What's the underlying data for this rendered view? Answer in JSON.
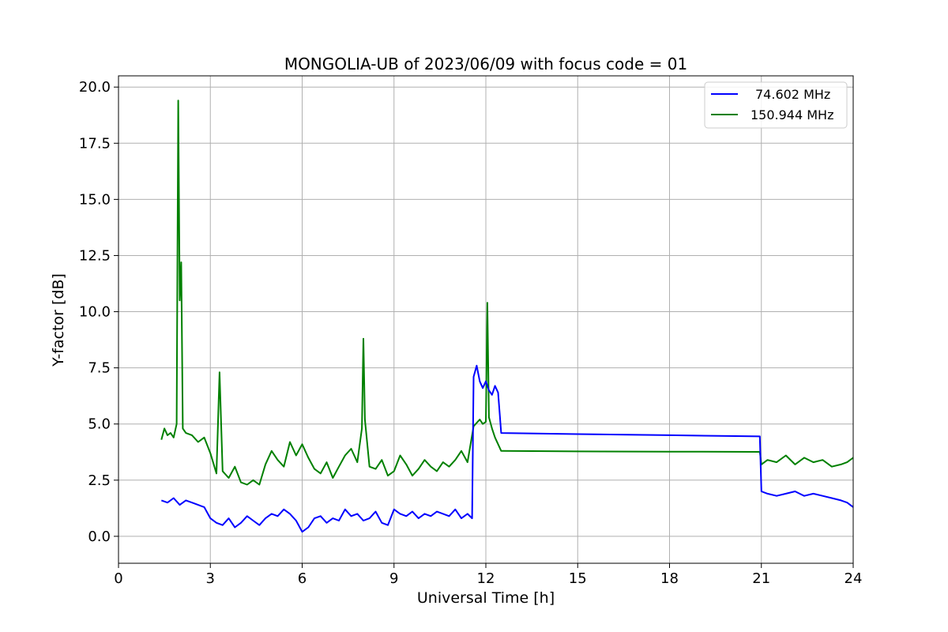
{
  "chart_data": {
    "type": "line",
    "title": "MONGOLIA-UB of 2023/06/09 with focus code = 01",
    "xlabel": "Universal Time [h]",
    "ylabel": "Y-factor [dB]",
    "xlim": [
      0,
      24
    ],
    "ylim": [
      -1.2,
      20.5
    ],
    "xticks": [
      0,
      3,
      6,
      9,
      12,
      15,
      18,
      21,
      24
    ],
    "xtick_labels": [
      "0",
      "3",
      "6",
      "9",
      "12",
      "15",
      "18",
      "21",
      "24"
    ],
    "yticks": [
      0,
      2.5,
      5,
      7.5,
      10,
      12.5,
      15,
      17.5,
      20
    ],
    "ytick_labels": [
      "0.0",
      "2.5",
      "5.0",
      "7.5",
      "10.0",
      "12.5",
      "15.0",
      "17.5",
      "20.0"
    ],
    "grid": true,
    "legend_position": "top-right",
    "series": [
      {
        "name": "74.602 MHz",
        "color": "#0000ff",
        "x": [
          1.4,
          1.6,
          1.8,
          2.0,
          2.2,
          2.4,
          2.6,
          2.8,
          3.0,
          3.2,
          3.4,
          3.6,
          3.8,
          4.0,
          4.2,
          4.4,
          4.6,
          4.8,
          5.0,
          5.2,
          5.4,
          5.6,
          5.8,
          6.0,
          6.2,
          6.4,
          6.6,
          6.8,
          7.0,
          7.2,
          7.4,
          7.6,
          7.8,
          8.0,
          8.2,
          8.4,
          8.6,
          8.8,
          9.0,
          9.2,
          9.4,
          9.6,
          9.8,
          10.0,
          10.2,
          10.4,
          10.6,
          10.8,
          11.0,
          11.2,
          11.4,
          11.55,
          11.6,
          11.7,
          11.8,
          11.9,
          12.0,
          12.1,
          12.2,
          12.3,
          12.4,
          12.5,
          15.0,
          18.0,
          20.95,
          21.0,
          21.2,
          21.5,
          21.8,
          22.1,
          22.4,
          22.7,
          23.0,
          23.3,
          23.6,
          23.8,
          24.0
        ],
        "y": [
          1.6,
          1.5,
          1.7,
          1.4,
          1.6,
          1.5,
          1.4,
          1.3,
          0.8,
          0.6,
          0.5,
          0.8,
          0.4,
          0.6,
          0.9,
          0.7,
          0.5,
          0.8,
          1.0,
          0.9,
          1.2,
          1.0,
          0.7,
          0.2,
          0.4,
          0.8,
          0.9,
          0.6,
          0.8,
          0.7,
          1.2,
          0.9,
          1.0,
          0.7,
          0.8,
          1.1,
          0.6,
          0.5,
          1.2,
          1.0,
          0.9,
          1.1,
          0.8,
          1.0,
          0.9,
          1.1,
          1.0,
          0.9,
          1.2,
          0.8,
          1.0,
          0.8,
          7.1,
          7.6,
          6.9,
          6.6,
          6.9,
          6.5,
          6.3,
          6.7,
          6.4,
          4.6,
          4.55,
          4.5,
          4.45,
          2.0,
          1.9,
          1.8,
          1.9,
          2.0,
          1.8,
          1.9,
          1.8,
          1.7,
          1.6,
          1.5,
          1.3
        ]
      },
      {
        "name": "150.944 MHz",
        "color": "#008000",
        "x": [
          1.4,
          1.5,
          1.6,
          1.7,
          1.8,
          1.9,
          1.95,
          2.0,
          2.05,
          2.1,
          2.2,
          2.4,
          2.6,
          2.8,
          3.0,
          3.2,
          3.3,
          3.4,
          3.6,
          3.8,
          4.0,
          4.2,
          4.4,
          4.6,
          4.8,
          5.0,
          5.2,
          5.4,
          5.6,
          5.8,
          6.0,
          6.2,
          6.4,
          6.6,
          6.8,
          7.0,
          7.2,
          7.4,
          7.6,
          7.8,
          7.95,
          8.0,
          8.05,
          8.2,
          8.4,
          8.6,
          8.8,
          9.0,
          9.2,
          9.4,
          9.6,
          9.8,
          10.0,
          10.2,
          10.4,
          10.6,
          10.8,
          11.0,
          11.2,
          11.4,
          11.6,
          11.8,
          11.9,
          12.0,
          12.05,
          12.1,
          12.2,
          12.3,
          12.4,
          12.5,
          15.0,
          18.0,
          20.95,
          21.0,
          21.2,
          21.5,
          21.8,
          22.1,
          22.4,
          22.7,
          23.0,
          23.3,
          23.6,
          23.8,
          24.0
        ],
        "y": [
          4.3,
          4.8,
          4.5,
          4.6,
          4.4,
          5.0,
          19.4,
          10.5,
          12.2,
          4.8,
          4.6,
          4.5,
          4.2,
          4.4,
          3.7,
          2.8,
          7.3,
          2.9,
          2.6,
          3.1,
          2.4,
          2.3,
          2.5,
          2.3,
          3.2,
          3.8,
          3.4,
          3.1,
          4.2,
          3.6,
          4.1,
          3.5,
          3.0,
          2.8,
          3.3,
          2.6,
          3.1,
          3.6,
          3.9,
          3.3,
          4.8,
          8.8,
          5.2,
          3.1,
          3.0,
          3.4,
          2.7,
          2.9,
          3.6,
          3.2,
          2.7,
          3.0,
          3.4,
          3.1,
          2.9,
          3.3,
          3.1,
          3.4,
          3.8,
          3.3,
          4.9,
          5.2,
          5.0,
          5.1,
          10.4,
          5.3,
          4.8,
          4.4,
          4.1,
          3.8,
          3.78,
          3.77,
          3.76,
          3.2,
          3.4,
          3.3,
          3.6,
          3.2,
          3.5,
          3.3,
          3.4,
          3.1,
          3.2,
          3.3,
          3.5
        ]
      }
    ]
  }
}
